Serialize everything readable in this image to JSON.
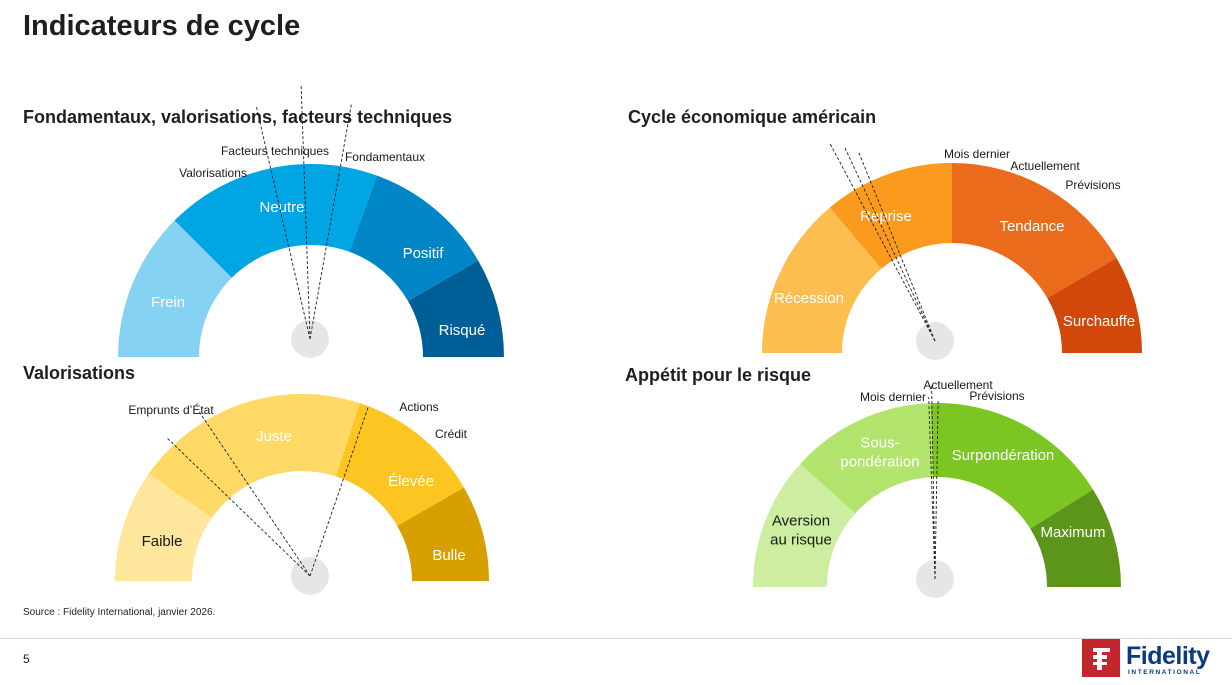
{
  "page": {
    "title": "Indicateurs de cycle",
    "source": "Source : Fidelity International, janvier 2026.",
    "page_number": "5",
    "logo_text": "Fidelity",
    "logo_subtext": "INTERNATIONAL"
  },
  "gauges": [
    {
      "title": "Fondamentaux, valorisations, facteurs techniques",
      "segments": [
        {
          "label": "Frein",
          "color": "#85d2f2",
          "text_color": "#ffffff"
        },
        {
          "label": "Neutre",
          "color": "#00a5e3",
          "text_color": "#ffffff"
        },
        {
          "label": "Positif",
          "color": "#0086c6",
          "text_color": "#ffffff"
        },
        {
          "label": "Risqué",
          "color": "#005e96",
          "text_color": "#ffffff"
        }
      ],
      "pointers": [
        "Valorisations",
        "Facteurs techniques",
        "Fondamentaux"
      ]
    },
    {
      "title": "Cycle économique américain",
      "segments": [
        {
          "label": "Récession",
          "color": "#fdbe4f",
          "text_color": "#ffffff"
        },
        {
          "label": "Reprise",
          "color": "#fb9a1c",
          "text_color": "#ffffff"
        },
        {
          "label": "Tendance",
          "color": "#ea6b1c",
          "text_color": "#ffffff"
        },
        {
          "label": "Surchauffe",
          "color": "#d1480a",
          "text_color": "#ffffff"
        }
      ],
      "pointers": [
        "Mois dernier",
        "Actuellement",
        "Prévisions"
      ]
    },
    {
      "title": "Valorisations",
      "segments": [
        {
          "label": "Faible",
          "color": "#fee79c",
          "text_color": "#1a1a1a"
        },
        {
          "label": "Juste",
          "color": "#fed966",
          "text_color": "#ffffff"
        },
        {
          "label": "Élevée",
          "color": "#fdc521",
          "text_color": "#ffffff"
        },
        {
          "label": "Bulle",
          "color": "#d79f00",
          "text_color": "#ffffff"
        }
      ],
      "pointers": [
        "Emprunts d’État",
        "Actions",
        "Crédit"
      ]
    },
    {
      "title": "Appétit pour le risque",
      "segments": [
        {
          "label": "Aversion au risque",
          "color": "#cdeea0",
          "text_color": "#1a1a1a"
        },
        {
          "label": "Sous-pondération",
          "color": "#b2e36c",
          "text_color": "#ffffff"
        },
        {
          "label": "Surpondération",
          "color": "#7cc623",
          "text_color": "#ffffff"
        },
        {
          "label": "Maximum",
          "color": "#5c951a",
          "text_color": "#ffffff"
        }
      ],
      "pointers": [
        "Mois dernier",
        "Actuellement",
        "Prévisions"
      ]
    }
  ]
}
